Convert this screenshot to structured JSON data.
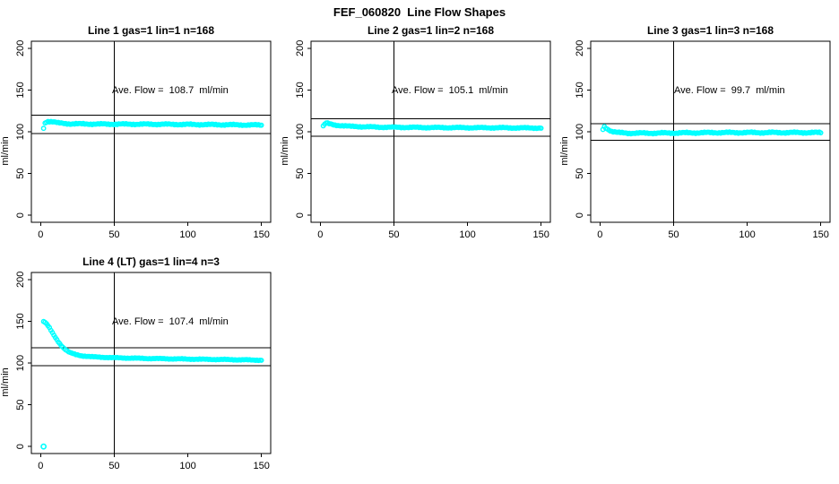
{
  "page": {
    "title": "FEF_060820  Line Flow Shapes",
    "background": "#FFFFFF",
    "axis_color": "#000000"
  },
  "chart_data": [
    {
      "type": "scatter",
      "title": "Line 1 gas=1 lin=1 n=168",
      "line": 1,
      "gas": 1,
      "lin": 1,
      "n": 168,
      "annotation": "Ave. Flow =  108.7  ml/min",
      "ave_flow_ml_min": 108.7,
      "ylabel": "ml/min",
      "xticks": [
        0,
        50,
        100,
        150
      ],
      "yticks": [
        0,
        50,
        100,
        150,
        200
      ],
      "xlim": [
        0,
        150
      ],
      "ylim": [
        0,
        200
      ],
      "vline_x": 50,
      "hlines": [
        97.8,
        119.6
      ],
      "point_color": "#00FFFF",
      "profile": [
        [
          2,
          104
        ],
        [
          3,
          111
        ],
        [
          5,
          112.5
        ],
        [
          8,
          112
        ],
        [
          12,
          110.5
        ],
        [
          20,
          109.5
        ],
        [
          40,
          109.2
        ],
        [
          80,
          109
        ],
        [
          120,
          108.5
        ],
        [
          150,
          108
        ]
      ],
      "outliers": [],
      "jitter": 0.8,
      "x_step": 1,
      "x_end": 150,
      "annotation_xy": [
        88,
        149
      ],
      "legend": null
    },
    {
      "type": "scatter",
      "title": "Line 2 gas=1 lin=2 n=168",
      "line": 2,
      "gas": 1,
      "lin": 2,
      "n": 168,
      "annotation": "Ave. Flow =  105.1  ml/min",
      "ave_flow_ml_min": 105.1,
      "ylabel": "ml/min",
      "xticks": [
        0,
        50,
        100,
        150
      ],
      "yticks": [
        0,
        50,
        100,
        150,
        200
      ],
      "xlim": [
        0,
        150
      ],
      "ylim": [
        0,
        200
      ],
      "vline_x": 50,
      "hlines": [
        94.6,
        115.6
      ],
      "point_color": "#00FFFF",
      "profile": [
        [
          2,
          107
        ],
        [
          4,
          110.5
        ],
        [
          6,
          109.5
        ],
        [
          10,
          108
        ],
        [
          20,
          106.5
        ],
        [
          40,
          105.5
        ],
        [
          80,
          105
        ],
        [
          120,
          104.8
        ],
        [
          150,
          104.5
        ]
      ],
      "outliers": [],
      "jitter": 0.7,
      "x_step": 1,
      "x_end": 150,
      "annotation_xy": [
        88,
        149
      ],
      "legend": null
    },
    {
      "type": "scatter",
      "title": "Line 3 gas=1 lin=3 n=168",
      "line": 3,
      "gas": 1,
      "lin": 3,
      "n": 168,
      "annotation": "Ave. Flow =  99.7  ml/min",
      "ave_flow_ml_min": 99.7,
      "ylabel": "ml/min",
      "xticks": [
        0,
        50,
        100,
        150
      ],
      "yticks": [
        0,
        50,
        100,
        150,
        200
      ],
      "xlim": [
        0,
        150
      ],
      "ylim": [
        0,
        200
      ],
      "vline_x": 50,
      "hlines": [
        89.7,
        109.7
      ],
      "point_color": "#00FFFF",
      "profile": [
        [
          2,
          103
        ],
        [
          3,
          106
        ],
        [
          5,
          103.5
        ],
        [
          8,
          100.5
        ],
        [
          12,
          99
        ],
        [
          20,
          98.3
        ],
        [
          40,
          98.4
        ],
        [
          80,
          99
        ],
        [
          120,
          99
        ],
        [
          150,
          99
        ]
      ],
      "outliers": [],
      "jitter": 0.9,
      "x_step": 1,
      "x_end": 150,
      "annotation_xy": [
        88,
        149
      ],
      "legend": null
    },
    {
      "type": "scatter",
      "title": "Line 4 (LT) gas=1 lin=4 n=3",
      "line": 4,
      "gas": 1,
      "lin": 4,
      "n": 3,
      "annotation": "Ave. Flow =  107.4  ml/min",
      "ave_flow_ml_min": 107.4,
      "ylabel": "ml/min",
      "xticks": [
        0,
        50,
        100,
        150
      ],
      "yticks": [
        0,
        50,
        100,
        150,
        200
      ],
      "xlim": [
        0,
        150
      ],
      "ylim": [
        0,
        200
      ],
      "vline_x": 50,
      "hlines": [
        96.7,
        118.1
      ],
      "point_color": "#00FFFF",
      "profile": [
        [
          2,
          150
        ],
        [
          4,
          147
        ],
        [
          6,
          142
        ],
        [
          8,
          136
        ],
        [
          10,
          130.5
        ],
        [
          12,
          125.5
        ],
        [
          14,
          121
        ],
        [
          16,
          117.5
        ],
        [
          18,
          114.5
        ],
        [
          20,
          112.3
        ],
        [
          24,
          110
        ],
        [
          28,
          108.6
        ],
        [
          35,
          107.4
        ],
        [
          50,
          106.3
        ],
        [
          70,
          105.5
        ],
        [
          100,
          104.7
        ],
        [
          130,
          104
        ],
        [
          150,
          103.4
        ]
      ],
      "outliers": [
        [
          2,
          0
        ]
      ],
      "jitter": 0.5,
      "x_step": 1,
      "x_end": 150,
      "annotation_xy": [
        88,
        149
      ],
      "legend": null
    }
  ]
}
